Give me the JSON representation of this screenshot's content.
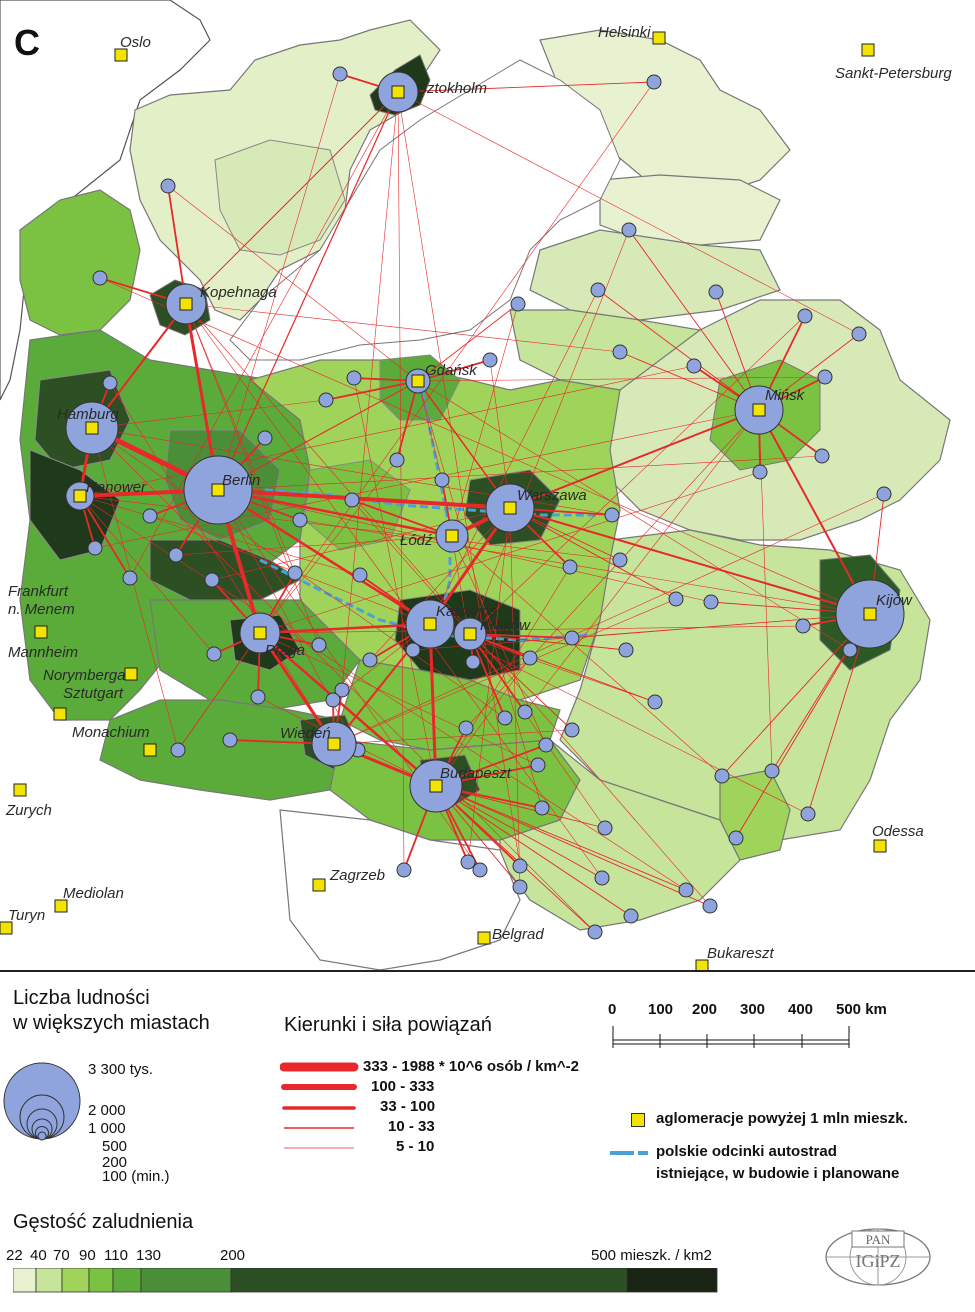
{
  "panel_letter": "C",
  "cities_labels": {
    "oslo": "Oslo",
    "helsinki": "Helsinki",
    "sankt": "Sankt-Petersburg",
    "sztokholm": "Sztokholm",
    "kopenhaga": "Kopehnaga",
    "gdansk": "Gdańsk",
    "minsk": "Mińsk",
    "hamburg": "Hamburg",
    "berlin": "Berlin",
    "hanower": "Hanower",
    "warszawa": "Warszawa",
    "lodz": "Łódź",
    "katowice": "Katowice",
    "krakow": "Kraków",
    "kijow": "Kijów",
    "frankfurt1": "Frankfurt",
    "frankfurt2": "n. Menem",
    "mannheim": "Mannheim",
    "norymberga": "Norymberga",
    "sztutgart": "Sztutgart",
    "praga": "Praga",
    "monachium": "Monachium",
    "wieden": "Wiedeń",
    "budapeszt": "Budapeszt",
    "zurych": "Zurych",
    "odessa": "Odessa",
    "zagrzeb": "Zagrzeb",
    "mediolan": "Mediolan",
    "turyn": "Turyn",
    "belgrad": "Belgrad",
    "bukareszt": "Bukareszt"
  },
  "legend": {
    "pop_title_1": "Liczba ludności",
    "pop_title_2": "w większych miastach",
    "pop_sizes": [
      "3 300 tys.",
      "2 000",
      "1 000",
      "500",
      "200",
      "100 (min.)"
    ],
    "links_title": "Kierunki i siła powiązań",
    "link_classes": [
      "333 - 1988 * 10^6 osób / km^-2",
      "100 - 333",
      "33 - 100",
      "10 - 33",
      "5 - 10"
    ],
    "scale_ticks": [
      "0",
      "100",
      "200",
      "300",
      "400",
      "500 km"
    ],
    "agglom_label": "aglomeracje powyżej 1 mln mieszk.",
    "motorway_label_1": "polskie odcinki autostrad",
    "motorway_label_2": "istniejące, w budowie i planowane",
    "density_title": "Gęstość zaludnienia",
    "density_ticks": [
      "22",
      "40",
      "70",
      "90",
      "110",
      "130",
      "200",
      "500 mieszk. / km2"
    ],
    "density_colors": [
      "#e8f2d0",
      "#c6e49a",
      "#9fd35a",
      "#7cc242",
      "#5bab3a",
      "#4a8f38",
      "#2c4f24",
      "#1a2414"
    ],
    "logo_top": "PAN",
    "logo_bottom": "IGiPZ"
  },
  "colors": {
    "link": "#e8282a",
    "city_circle": "#8fa3dc",
    "agglom": "#f2e400",
    "motorway": "#4aa0d8"
  }
}
